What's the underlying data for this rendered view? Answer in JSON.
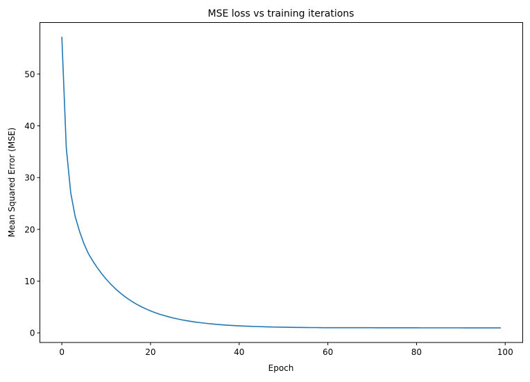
{
  "chart_data": {
    "type": "line",
    "title": "MSE loss vs training iterations",
    "xlabel": "Epoch",
    "ylabel": "Mean Squared Error (MSE)",
    "xlim": [
      -4.95,
      103.95
    ],
    "ylim": [
      -1.86,
      59.96
    ],
    "xticks": [
      0,
      20,
      40,
      60,
      80,
      100
    ],
    "yticks": [
      0,
      10,
      20,
      30,
      40,
      50
    ],
    "grid": false,
    "series": [
      {
        "color": "#1f77b4",
        "x_start": 0,
        "x_step": 1,
        "values": [
          57.2,
          35.8,
          27.1,
          22.5,
          19.6,
          17.2,
          15.3,
          13.87,
          12.58,
          11.42,
          10.38,
          9.44,
          8.59,
          7.83,
          7.14,
          6.53,
          5.97,
          5.47,
          5.02,
          4.61,
          4.25,
          3.92,
          3.62,
          3.36,
          3.12,
          2.9,
          2.71,
          2.53,
          2.37,
          2.23,
          2.1,
          1.99,
          1.89,
          1.79,
          1.71,
          1.63,
          1.56,
          1.5,
          1.45,
          1.4,
          1.35,
          1.31,
          1.28,
          1.24,
          1.22,
          1.19,
          1.16,
          1.14,
          1.12,
          1.11,
          1.09,
          1.08,
          1.06,
          1.05,
          1.04,
          1.03,
          1.02,
          1.02,
          1.01,
          1.0,
          1.0,
          0.99,
          0.99,
          0.99,
          0.99,
          0.99,
          0.99,
          0.99,
          0.99,
          0.99,
          0.99,
          0.98,
          0.98,
          0.98,
          0.98,
          0.98,
          0.98,
          0.98,
          0.98,
          0.98,
          0.98,
          0.97,
          0.97,
          0.97,
          0.97,
          0.97,
          0.97,
          0.97,
          0.97,
          0.97,
          0.97,
          0.96,
          0.96,
          0.96,
          0.96,
          0.96,
          0.96,
          0.96,
          0.96,
          0.96
        ]
      }
    ]
  }
}
